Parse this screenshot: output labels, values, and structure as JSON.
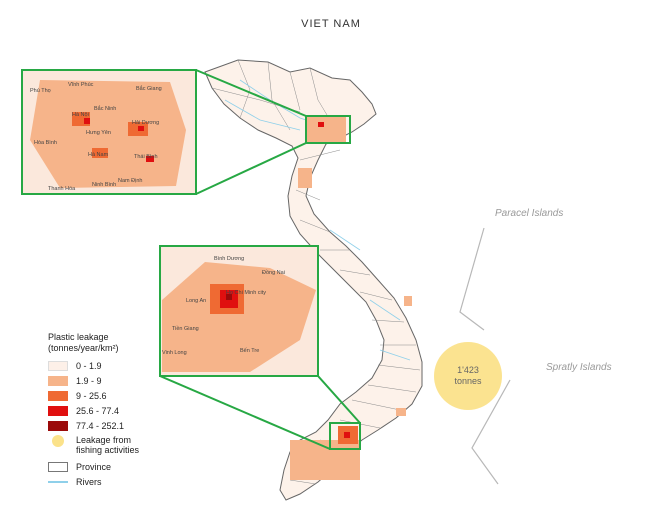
{
  "title": "VIET NAM",
  "islands": {
    "paracel": "Paracel Islands",
    "spratly": "Spratly Islands"
  },
  "fishing_circle": {
    "value": "1'423",
    "unit": "tonnes"
  },
  "legend": {
    "title_line1": "Plastic leakage",
    "title_line2": "(tonnes/year/km²)",
    "classes": [
      {
        "label": "0 - 1.9",
        "color": "#fdf0e8"
      },
      {
        "label": "1.9 - 9",
        "color": "#f6b48a"
      },
      {
        "label": "9 - 25.6",
        "color": "#ef6a33"
      },
      {
        "label": "25.6 - 77.4",
        "color": "#e00f0f"
      },
      {
        "label": "77.4 - 252.1",
        "color": "#9b0a0a"
      }
    ],
    "fishing_line1": "Leakage from",
    "fishing_line2": "fishing activities",
    "fishing_color": "#fbe28a",
    "province": "Province",
    "rivers": "Rivers",
    "river_color": "#8fd0ea"
  },
  "inset_north_labels": [
    "Phú Thọ",
    "Vĩnh Phúc",
    "Bắc Giang",
    "Bắc Ninh",
    "Hà Nội",
    "Hưng Yên",
    "Hải Dương",
    "Hòa Bình",
    "Hà Nam",
    "Thái Bình",
    "Thanh Hóa",
    "Ninh Bình",
    "Nam Định"
  ],
  "inset_south_labels": [
    "Bình Dương",
    "Đồng Nai",
    "Long An",
    "Ho Chi Minh city",
    "Tiền Giang",
    "Bến Tre",
    "Vinh Long"
  ],
  "frame_color": "#27a844"
}
